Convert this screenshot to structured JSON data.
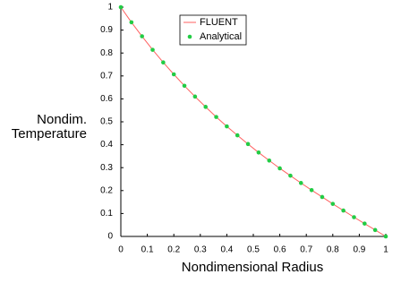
{
  "chart_data": {
    "type": "line",
    "xlabel": "Nondimensional Radius",
    "ylabel": [
      "Nondim.",
      "Temperature"
    ],
    "x": [
      0,
      0.04,
      0.08,
      0.12,
      0.16,
      0.2,
      0.24,
      0.28,
      0.32,
      0.36,
      0.4,
      0.44,
      0.48,
      0.52,
      0.56,
      0.6,
      0.64,
      0.68,
      0.72,
      0.76,
      0.8,
      0.84,
      0.88,
      0.92,
      0.96,
      1
    ],
    "series": [
      {
        "name": "FLUENT",
        "color": "#ff6060",
        "mode": "line",
        "values": [
          1,
          0.934,
          0.873,
          0.814,
          0.759,
          0.707,
          0.657,
          0.61,
          0.565,
          0.521,
          0.48,
          0.441,
          0.403,
          0.366,
          0.331,
          0.297,
          0.265,
          0.233,
          0.202,
          0.172,
          0.142,
          0.113,
          0.084,
          0.056,
          0.028,
          0
        ]
      },
      {
        "name": "Analytical",
        "color": "#22cc44",
        "mode": "markers",
        "values": [
          1,
          0.934,
          0.873,
          0.814,
          0.759,
          0.707,
          0.657,
          0.61,
          0.565,
          0.521,
          0.48,
          0.441,
          0.403,
          0.366,
          0.331,
          0.297,
          0.265,
          0.233,
          0.202,
          0.172,
          0.142,
          0.113,
          0.084,
          0.056,
          0.028,
          0
        ]
      }
    ],
    "xlim": [
      0,
      1
    ],
    "ylim": [
      0,
      1
    ],
    "xticks": [
      0,
      0.1,
      0.2,
      0.3,
      0.4,
      0.5,
      0.6,
      0.7,
      0.8,
      0.9,
      1
    ],
    "yticks": [
      0,
      0.1,
      0.2,
      0.3,
      0.4,
      0.5,
      0.6,
      0.7,
      0.8,
      0.9,
      1
    ],
    "legend": "upper-center"
  }
}
